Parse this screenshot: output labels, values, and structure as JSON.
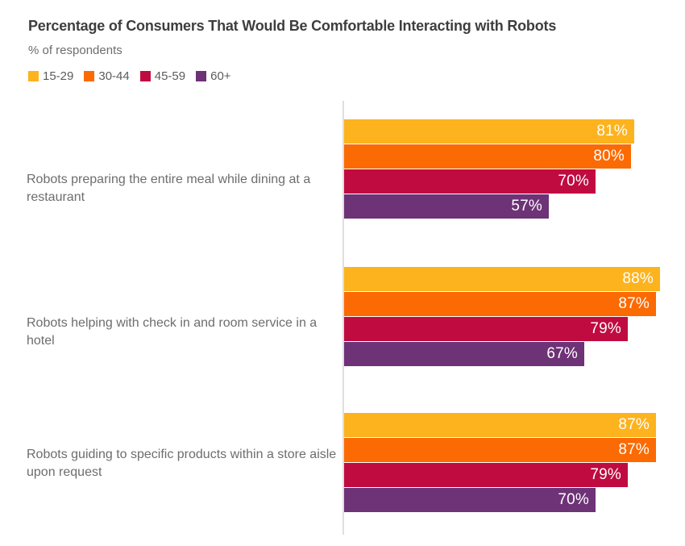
{
  "title": "Percentage of Consumers That Would Be Comfortable Interacting with Robots",
  "subtitle": "% of respondents",
  "colors": {
    "series": [
      "#FDB31E",
      "#FC6A03",
      "#C00B41",
      "#6E3277"
    ],
    "title_text": "#3E3E3E",
    "label_text": "#6D6D6D",
    "axis": "#DEDEDE",
    "value_label_text": "#FFFFFF"
  },
  "chart_data": {
    "type": "bar",
    "orientation": "horizontal",
    "unit": "%",
    "xlim": [
      0,
      100
    ],
    "grid": false,
    "legend_position": "top-left",
    "value_labels": "inside-end",
    "title": "Percentage of Consumers That Would Be Comfortable Interacting with Robots",
    "subtitle": "% of respondents",
    "categories": [
      "Robots preparing the entire meal while dining at a restaurant",
      "Robots helping with check in and room service in a hotel",
      "Robots guiding to specific products within a store aisle upon request"
    ],
    "series": [
      {
        "name": "15-29",
        "color": "#FDB31E",
        "values": [
          81,
          88,
          87
        ]
      },
      {
        "name": "30-44",
        "color": "#FC6A03",
        "values": [
          80,
          87,
          87
        ]
      },
      {
        "name": "45-59",
        "color": "#C00B41",
        "values": [
          70,
          79,
          79
        ]
      },
      {
        "name": "60+",
        "color": "#6E3277",
        "values": [
          57,
          67,
          70
        ]
      }
    ]
  }
}
